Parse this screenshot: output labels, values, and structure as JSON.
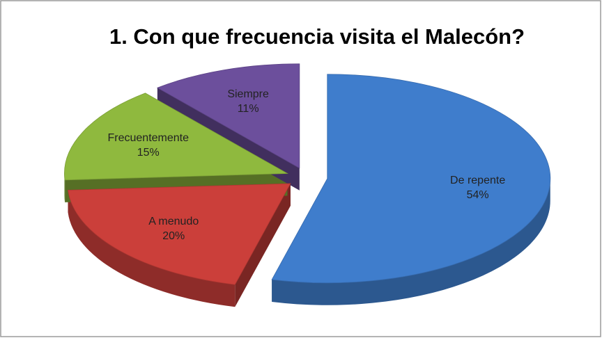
{
  "chart_data": {
    "type": "pie",
    "title": "1. Con que frecuencia visita el Malecón?",
    "categories": [
      "De repente",
      "A menudo",
      "Frecuentemente",
      "Siempre"
    ],
    "values": [
      54,
      20,
      15,
      11
    ],
    "value_labels": [
      "54%",
      "20%",
      "15%",
      "11%"
    ],
    "colors": [
      "#3f7dcc",
      "#cb3f3a",
      "#8fb93e",
      "#6c4f9c"
    ],
    "exploded": true,
    "three_d": true
  }
}
